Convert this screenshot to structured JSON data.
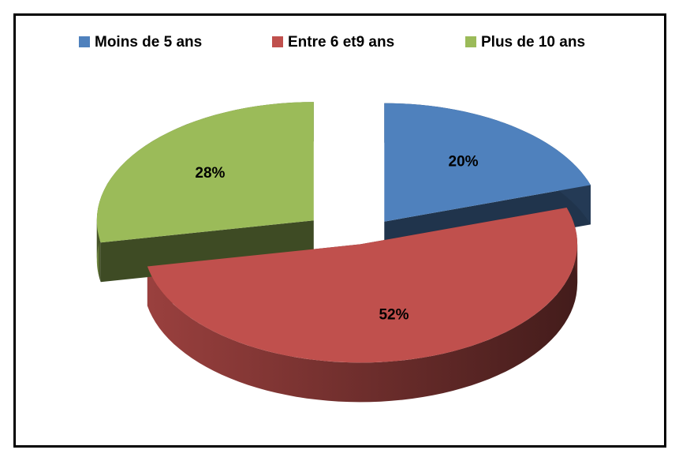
{
  "chart_data": {
    "type": "pie",
    "categories": [
      "Moins de 5 ans",
      "Entre 6 et9 ans",
      "Plus de 10 ans"
    ],
    "values": [
      20,
      52,
      28
    ],
    "value_labels": [
      "20%",
      "52%",
      "28%"
    ],
    "colors": [
      "#4f81bd",
      "#c0504d",
      "#9bbb59"
    ],
    "legend": "top"
  }
}
